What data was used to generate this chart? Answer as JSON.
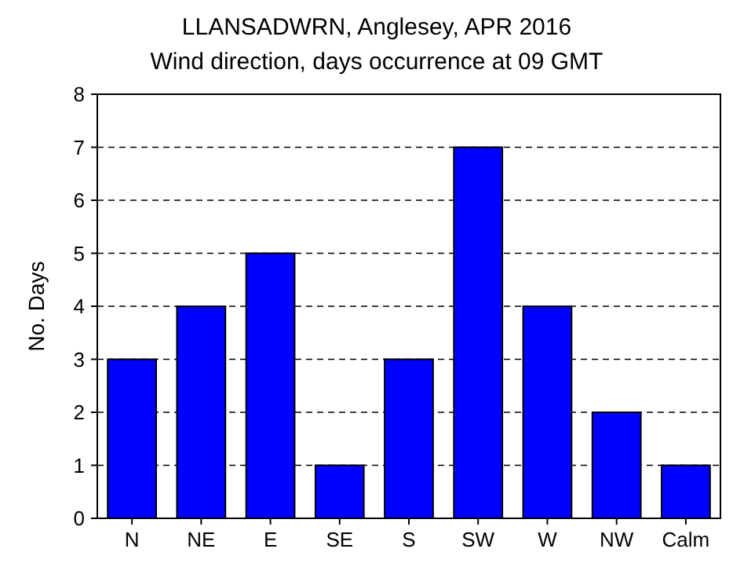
{
  "chart_data": {
    "type": "bar",
    "title": "LLANSADWRN, Anglesey, APR 2016",
    "subtitle": "Wind direction, days occurrence at 09 GMT",
    "ylabel": "No. Days",
    "categories": [
      "N",
      "NE",
      "E",
      "SE",
      "S",
      "SW",
      "W",
      "NW",
      "Calm"
    ],
    "values": [
      3,
      4,
      5,
      1,
      3,
      7,
      4,
      2,
      1
    ],
    "color": "#0000ff",
    "ylim": [
      0,
      8
    ],
    "yticks": [
      0,
      1,
      2,
      3,
      4,
      5,
      6,
      7,
      8
    ],
    "grid": "y"
  }
}
